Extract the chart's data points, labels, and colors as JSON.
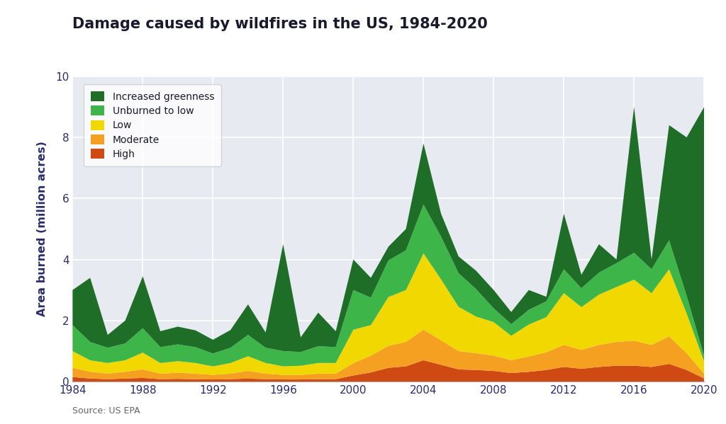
{
  "title": "Damage caused by wildfires in the US, 1984-2020",
  "ylabel": "Area burned (million acres)",
  "source": "Source: US EPA",
  "fig_bg_color": "#ffffff",
  "plot_bg_color": "#e8eaf2",
  "ylim": [
    0,
    10
  ],
  "yticks": [
    0,
    2,
    4,
    6,
    8,
    10
  ],
  "xticks": [
    1984,
    1988,
    1992,
    1996,
    2000,
    2004,
    2008,
    2012,
    2016,
    2020
  ],
  "years": [
    1984,
    1985,
    1986,
    1987,
    1988,
    1989,
    1990,
    1991,
    1992,
    1993,
    1994,
    1995,
    1996,
    1997,
    1998,
    1999,
    2000,
    2001,
    2002,
    2003,
    2004,
    2005,
    2006,
    2007,
    2008,
    2009,
    2010,
    2011,
    2012,
    2013,
    2014,
    2015,
    2016,
    2017,
    2018,
    2019,
    2020
  ],
  "high": [
    0.15,
    0.1,
    0.08,
    0.1,
    0.12,
    0.08,
    0.09,
    0.08,
    0.07,
    0.08,
    0.1,
    0.08,
    0.07,
    0.07,
    0.08,
    0.08,
    0.2,
    0.3,
    0.45,
    0.5,
    0.7,
    0.55,
    0.4,
    0.38,
    0.35,
    0.28,
    0.32,
    0.38,
    0.48,
    0.42,
    0.48,
    0.52,
    0.52,
    0.48,
    0.58,
    0.38,
    0.1
  ],
  "moderate": [
    0.3,
    0.22,
    0.18,
    0.22,
    0.28,
    0.18,
    0.2,
    0.18,
    0.15,
    0.18,
    0.25,
    0.18,
    0.15,
    0.15,
    0.18,
    0.18,
    0.4,
    0.55,
    0.72,
    0.8,
    1.0,
    0.8,
    0.6,
    0.55,
    0.5,
    0.42,
    0.5,
    0.58,
    0.72,
    0.62,
    0.72,
    0.78,
    0.82,
    0.72,
    0.9,
    0.55,
    0.15
  ],
  "low": [
    0.55,
    0.38,
    0.35,
    0.38,
    0.55,
    0.35,
    0.38,
    0.35,
    0.28,
    0.35,
    0.48,
    0.35,
    0.28,
    0.3,
    0.35,
    0.35,
    1.1,
    1.0,
    1.6,
    1.7,
    2.5,
    2.0,
    1.45,
    1.2,
    1.1,
    0.8,
    1.05,
    1.15,
    1.7,
    1.4,
    1.65,
    1.8,
    2.0,
    1.7,
    2.2,
    1.3,
    0.4
  ],
  "unburned": [
    0.85,
    0.6,
    0.5,
    0.55,
    0.8,
    0.52,
    0.55,
    0.52,
    0.42,
    0.5,
    0.7,
    0.5,
    0.5,
    0.45,
    0.55,
    0.52,
    1.3,
    0.9,
    1.2,
    1.3,
    1.6,
    1.4,
    1.1,
    0.9,
    0.45,
    0.38,
    0.48,
    0.52,
    0.78,
    0.62,
    0.72,
    0.78,
    0.88,
    0.78,
    0.95,
    0.58,
    0.18
  ],
  "increased": [
    1.15,
    2.1,
    0.42,
    0.75,
    1.7,
    0.52,
    0.58,
    0.55,
    0.45,
    0.58,
    1.0,
    0.5,
    3.5,
    0.48,
    1.1,
    0.52,
    1.0,
    0.65,
    0.45,
    0.7,
    2.0,
    0.75,
    0.55,
    0.6,
    0.6,
    0.4,
    0.65,
    0.15,
    1.82,
    0.44,
    0.93,
    0.12,
    4.78,
    0.32,
    3.77,
    5.19,
    8.17
  ],
  "colors": {
    "high": "#cf4a12",
    "moderate": "#f5a020",
    "low": "#f0d800",
    "unburned": "#3db548",
    "increased": "#1e6e28"
  },
  "legend_labels": [
    "Increased greenness",
    "Unburned to low",
    "Low",
    "Moderate",
    "High"
  ],
  "legend_colors": [
    "#1e6e28",
    "#3db548",
    "#f0d800",
    "#f5a020",
    "#cf4a12"
  ]
}
